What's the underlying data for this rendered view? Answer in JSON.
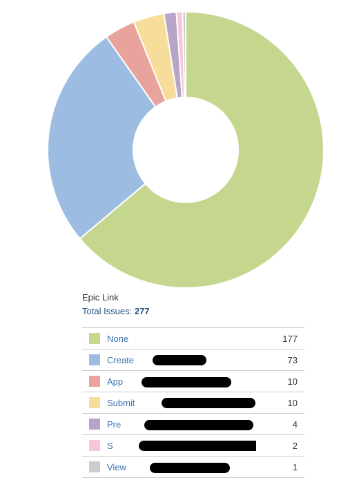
{
  "chart_data": {
    "type": "pie",
    "style": "donut",
    "title": "Epic Link",
    "total_label": "Total Issues:",
    "total": 277,
    "slices": [
      {
        "label": "None",
        "value": 177,
        "color": "#c5d78e"
      },
      {
        "label": "Create",
        "value": 73,
        "color": "#9cbde1"
      },
      {
        "label": "App",
        "value": 10,
        "color": "#e8a49c"
      },
      {
        "label": "Submit",
        "value": 10,
        "color": "#f7dd9a"
      },
      {
        "label": "Pre",
        "value": 4,
        "color": "#b7a5c8"
      },
      {
        "label": "S",
        "value": 2,
        "color": "#f7c6d9"
      },
      {
        "label": "View",
        "value": 1,
        "color": "#cccccc"
      }
    ]
  },
  "legend": {
    "rows": [
      {
        "label": "None",
        "count": "177",
        "color": "#c5d78e"
      },
      {
        "label": "Create",
        "count": "73",
        "color": "#9cbde1"
      },
      {
        "label": "App",
        "count": "10",
        "color": "#e8a49c"
      },
      {
        "label": "Submit",
        "count": "10",
        "color": "#f7dd9a"
      },
      {
        "label": "Pre",
        "count": "4",
        "color": "#b7a5c8"
      },
      {
        "label": "S",
        "count": "2",
        "color": "#f7c6d9"
      },
      {
        "label": "View",
        "count": "1",
        "color": "#cccccc"
      }
    ]
  }
}
